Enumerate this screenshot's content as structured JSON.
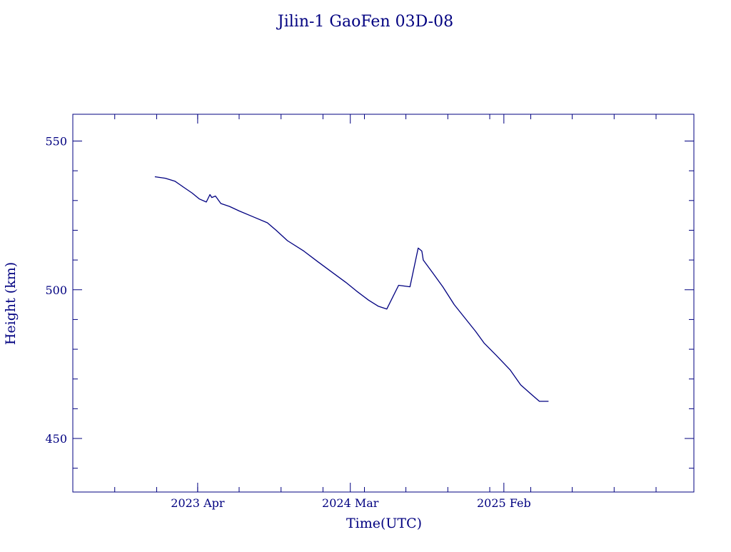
{
  "chart_data": {
    "type": "line",
    "title": "Jilin-1 GaoFen 03D-08",
    "xlabel": "Time(UTC)",
    "ylabel": "Height (km)",
    "ylim": [
      432,
      559
    ],
    "xlim": [
      "2022-07-01",
      "2026-03-25"
    ],
    "x_ticks": [
      {
        "date": "2023-04-01",
        "label": "2023 Apr"
      },
      {
        "date": "2024-03-01",
        "label": "2024 Mar"
      },
      {
        "date": "2025-02-01",
        "label": "2025 Feb"
      }
    ],
    "y_ticks": [
      450,
      500,
      550
    ],
    "grid": false,
    "line_color": "#000080",
    "series": [
      {
        "x": [
          "2022-12-28",
          "2023-01-20",
          "2023-02-10",
          "2023-03-01",
          "2023-03-20",
          "2023-04-05",
          "2023-04-20",
          "2023-04-28",
          "2023-05-02",
          "2023-05-10",
          "2023-05-22",
          "2023-06-10",
          "2023-07-01",
          "2023-08-01",
          "2023-09-01",
          "2023-09-20",
          "2023-10-15",
          "2023-11-20",
          "2023-12-20",
          "2024-01-20",
          "2024-02-20",
          "2024-03-15",
          "2024-04-10",
          "2024-05-01",
          "2024-05-20",
          "2024-06-15",
          "2024-07-10",
          "2024-07-28",
          "2024-08-01",
          "2024-08-05",
          "2024-08-06",
          "2024-08-08",
          "2024-08-25",
          "2024-09-20",
          "2024-10-15",
          "2024-11-10",
          "2024-12-01",
          "2024-12-20",
          "2025-01-15",
          "2025-02-15",
          "2025-03-10",
          "2025-04-01",
          "2025-04-20",
          "2025-05-10"
        ],
        "y": [
          538,
          537.5,
          536.5,
          534.5,
          532.5,
          530.5,
          529.5,
          532,
          531,
          531.5,
          529,
          528,
          526.5,
          524.5,
          522.5,
          520,
          516.5,
          513,
          509.5,
          506,
          502.5,
          499.5,
          496.5,
          494.5,
          493.5,
          501.5,
          501,
          514,
          513.5,
          513,
          512,
          510,
          506.5,
          501,
          495,
          490,
          486,
          482,
          478,
          473,
          468,
          465,
          462.5,
          462.5
        ]
      }
    ]
  }
}
